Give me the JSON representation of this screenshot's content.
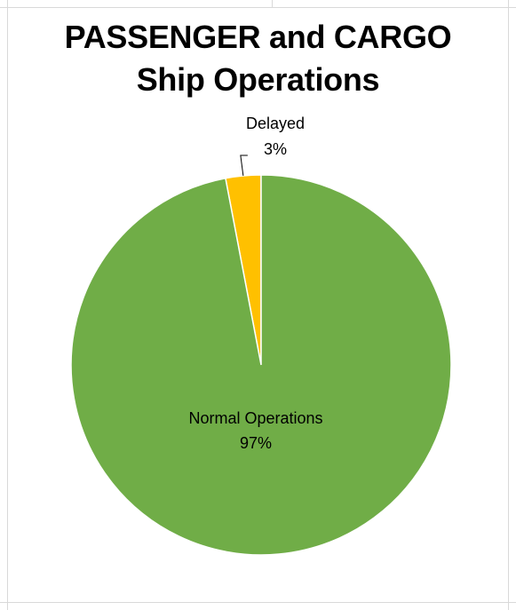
{
  "chart_data": {
    "type": "pie",
    "title": "PASSENGER and CARGO Ship Operations",
    "title_lines": [
      "PASSENGER and CARGO",
      "Ship Operations"
    ],
    "slices": [
      {
        "label": "Delayed",
        "value": 3,
        "percent_label": "3%",
        "color": "#FFC000"
      },
      {
        "label": "Normal Operations",
        "value": 97,
        "percent_label": "97%",
        "color": "#70AD47"
      }
    ],
    "start_angle_deg": 0,
    "direction": "counterclockwise-from-top",
    "legend": "none"
  }
}
